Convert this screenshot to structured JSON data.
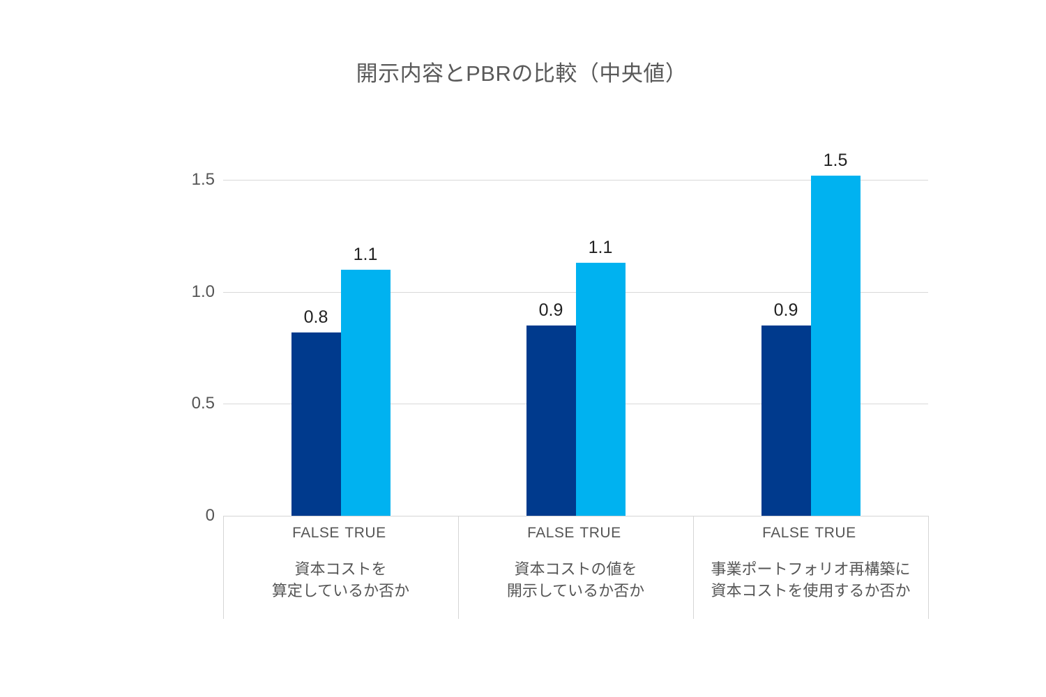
{
  "chart_data": {
    "type": "bar",
    "title": "開示内容とPBRの比較（中央値）",
    "xlabel": "",
    "ylabel": "",
    "ylim": [
      0,
      1.71
    ],
    "grid": true,
    "legend_position": "none",
    "yticks": [
      {
        "value": 0,
        "label": "0"
      },
      {
        "value": 0.5,
        "label": "0.5"
      },
      {
        "value": 1.0,
        "label": "1.0"
      },
      {
        "value": 1.5,
        "label": "1.5"
      }
    ],
    "categories": [
      "資本コストを算定しているか否か",
      "資本コストの値を開示しているか否か",
      "事業ポートフォリオ再構築に資本コストを使用するか否か"
    ],
    "series": [
      {
        "name": "FALSE",
        "values": [
          0.82,
          0.85,
          0.85
        ],
        "display_labels": [
          "0.8",
          "0.9",
          "0.9"
        ],
        "color": "#003A8D"
      },
      {
        "name": "TRUE",
        "values": [
          1.1,
          1.13,
          1.52
        ],
        "display_labels": [
          "1.1",
          "1.1",
          "1.5"
        ],
        "color": "#00B2F0"
      }
    ],
    "groups": [
      {
        "category_lines": [
          "資本コストを",
          "算定しているか否か"
        ],
        "bars": [
          {
            "series": "FALSE",
            "value": 0.82,
            "display_label": "0.8"
          },
          {
            "series": "TRUE",
            "value": 1.1,
            "display_label": "1.1"
          }
        ]
      },
      {
        "category_lines": [
          "資本コストの値を",
          "開示しているか否か"
        ],
        "bars": [
          {
            "series": "FALSE",
            "value": 0.85,
            "display_label": "0.9"
          },
          {
            "series": "TRUE",
            "value": 1.13,
            "display_label": "1.1"
          }
        ]
      },
      {
        "category_lines": [
          "事業ポートフォリオ再構築に",
          "資本コストを使用するか否か"
        ],
        "bars": [
          {
            "series": "FALSE",
            "value": 0.85,
            "display_label": "0.9"
          },
          {
            "series": "TRUE",
            "value": 1.52,
            "display_label": "1.5"
          }
        ]
      }
    ]
  },
  "colors": {
    "false_bar": "#003A8D",
    "true_bar": "#00B2F0",
    "gridline": "#D9D9D9",
    "axis_border": "#D5D5D5",
    "title_text": "#595959",
    "axis_text": "#555555",
    "value_label_text": "#212121",
    "background": "#FFFFFF"
  }
}
